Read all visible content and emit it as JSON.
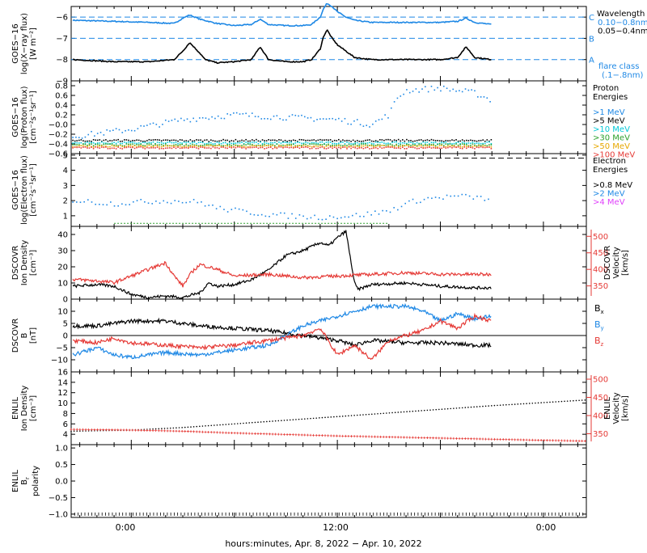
{
  "figure": {
    "xaxis_title": "hours:minutes, Apr.  8, 2022 − Apr. 10, 2022",
    "x_ticks": [
      "0:00",
      "12:00",
      "0:00"
    ],
    "x_tick_hours": [
      0,
      12,
      24
    ],
    "x_range_hours": [
      -3.5,
      26.5
    ]
  },
  "chart_data": [
    {
      "id": "xray",
      "type": "line",
      "ylabel": [
        "GOES−16",
        "log(X−ray flux)",
        "[W m⁻²]"
      ],
      "ylim": [
        -9,
        -5.5
      ],
      "y_ticks": [
        -9,
        -8,
        -7,
        -6
      ],
      "y_tick_labels": [
        "−9",
        "−8",
        "−7",
        "−6"
      ],
      "legend": {
        "title": "Wavelength",
        "entries": [
          {
            "label": "0.10−0.8nm",
            "color": "#1e88e5"
          },
          {
            "label": "0.05−0.4nm",
            "color": "#000000"
          }
        ]
      },
      "flare_levels": [
        {
          "label": "C",
          "value": -6
        },
        {
          "label": "B",
          "value": -7
        },
        {
          "label": "A",
          "value": -8
        }
      ],
      "flare_caption": [
        "flare class",
        "(.1−.8nm)"
      ],
      "series": [
        {
          "name": "0.10−0.8nm",
          "color": "#1e88e5",
          "x": [
            -3.4,
            -1,
            1,
            2.5,
            3.0,
            3.4,
            4,
            5,
            6,
            7,
            7.5,
            8,
            9,
            10,
            10.5,
            11,
            11.2,
            11.4,
            11.7,
            12,
            12.5,
            13,
            14,
            16,
            18,
            19,
            19.5,
            20,
            21
          ],
          "y": [
            -6.15,
            -6.2,
            -6.25,
            -6.3,
            -6.05,
            -5.9,
            -6.1,
            -6.3,
            -6.4,
            -6.35,
            -6.1,
            -6.35,
            -6.4,
            -6.4,
            -6.35,
            -6.0,
            -5.6,
            -5.35,
            -5.5,
            -5.75,
            -6.0,
            -6.15,
            -6.25,
            -6.25,
            -6.25,
            -6.2,
            -6.05,
            -6.25,
            -6.35
          ]
        },
        {
          "name": "0.05−0.4nm",
          "color": "#000000",
          "x": [
            -3.4,
            -1,
            1,
            2.5,
            3.0,
            3.4,
            4,
            4.3,
            5,
            6,
            7,
            7.5,
            8,
            9,
            10,
            10.5,
            11,
            11.2,
            11.4,
            11.7,
            12,
            12.5,
            13,
            14,
            16,
            18,
            19,
            19.5,
            20,
            21
          ],
          "y": [
            -8.0,
            -8.1,
            -8.1,
            -8.0,
            -7.6,
            -7.2,
            -7.7,
            -8.0,
            -8.15,
            -8.1,
            -8.0,
            -7.4,
            -8.0,
            -8.1,
            -8.1,
            -8.0,
            -7.5,
            -6.9,
            -6.6,
            -7.0,
            -7.3,
            -7.6,
            -7.9,
            -8.0,
            -8.0,
            -8.0,
            -7.9,
            -7.4,
            -7.9,
            -8.0
          ]
        }
      ]
    },
    {
      "id": "proton",
      "type": "scatter",
      "ylabel": [
        "GOES−16",
        "log(Proton flux)",
        "[cm⁻²s⁻¹sr⁻¹]"
      ],
      "ylim": [
        -0.6,
        0.9
      ],
      "y_ticks": [
        -0.6,
        -0.4,
        -0.2,
        0,
        0.2,
        0.4,
        0.6,
        0.8
      ],
      "y_tick_labels": [
        "−0.6",
        "−0.4",
        "−0.2",
        "−0.0",
        "0.2",
        "0.4",
        "0.6",
        "0.8"
      ],
      "legend": {
        "title": [
          "Proton",
          "Energies"
        ],
        "entries": [
          {
            "label": ">1 MeV",
            "color": "#1e88e5"
          },
          {
            "label": ">5 MeV",
            "color": "#000000"
          },
          {
            "label": ">10 MeV",
            "color": "#00c8d8"
          },
          {
            "label": ">30 MeV",
            "color": "#2ca02c"
          },
          {
            "label": ">50 MeV",
            "color": "#e6a800"
          },
          {
            "label": ">100 MeV",
            "color": "#e53935"
          }
        ]
      },
      "series": [
        {
          "name": ">1 MeV",
          "color": "#1e88e5",
          "x": [
            -3.4,
            0,
            3,
            6,
            9,
            12,
            14,
            15,
            15.5,
            16,
            18,
            20,
            21
          ],
          "y": [
            -0.25,
            -0.1,
            0.1,
            0.2,
            0.15,
            0.1,
            0.0,
            0.2,
            0.55,
            0.7,
            0.75,
            0.65,
            0.5
          ]
        },
        {
          "name": ">5 MeV",
          "color": "#000000",
          "x": [
            -3.4,
            21
          ],
          "y": [
            -0.33,
            -0.33
          ]
        },
        {
          "name": ">10 MeV",
          "color": "#00c8d8",
          "x": [
            -3.4,
            21
          ],
          "y": [
            -0.38,
            -0.38
          ]
        },
        {
          "name": ">30 MeV",
          "color": "#2ca02c",
          "x": [
            -3.4,
            21
          ],
          "y": [
            -0.42,
            -0.42
          ]
        },
        {
          "name": ">50 MeV",
          "color": "#e6a800",
          "x": [
            -3.4,
            21
          ],
          "y": [
            -0.45,
            -0.45
          ]
        },
        {
          "name": ">100 MeV",
          "color": "#e53935",
          "x": [
            -3.4,
            21
          ],
          "y": [
            -0.48,
            -0.48
          ]
        }
      ]
    },
    {
      "id": "electron",
      "type": "scatter",
      "ylabel": [
        "GOES−16",
        "log(Electron flux)",
        "[cm⁻²s⁻¹sr⁻¹]"
      ],
      "ylim": [
        0.3,
        5.1
      ],
      "y_ticks": [
        1,
        2,
        3,
        4,
        5
      ],
      "y_tick_labels": [
        "1",
        "2",
        "3",
        "4",
        "5"
      ],
      "reference_value": 4.8,
      "legend": {
        "title": [
          "Electron",
          "Energies"
        ],
        "entries": [
          {
            "label": ">0.8 MeV",
            "color": "#000000"
          },
          {
            "label": ">2 MeV",
            "color": "#1e88e5"
          },
          {
            "label": ">4 MeV",
            "color": "#e040fb"
          }
        ]
      },
      "series": [
        {
          "name": ">0.8 MeV",
          "color": "#000000",
          "x": [],
          "y": []
        },
        {
          "name": ">2 MeV",
          "color": "#1e88e5",
          "x": [
            -3.4,
            -1,
            2,
            4,
            5,
            7,
            9,
            11,
            13,
            15,
            16,
            17,
            19,
            21
          ],
          "y": [
            2.0,
            1.8,
            2.0,
            1.9,
            1.5,
            1.2,
            1.0,
            0.9,
            1.0,
            1.3,
            1.8,
            2.1,
            2.3,
            2.1
          ]
        },
        {
          "name": ">4 MeV",
          "color": "#e040fb",
          "x": [],
          "y": []
        }
      ]
    },
    {
      "id": "dscovr-plasma",
      "type": "line",
      "ylabel": [
        "DSCOVR",
        "Ion Density",
        "[cm⁻³]"
      ],
      "ylim": [
        0,
        45
      ],
      "y_ticks": [
        0,
        10,
        20,
        30,
        40
      ],
      "y_tick_labels": [
        "0",
        "10",
        "20",
        "30",
        "40"
      ],
      "y2label": [
        "DSCOVR",
        "Velocity",
        "[km/s]"
      ],
      "y2lim": [
        310,
        530
      ],
      "y2_ticks": [
        350,
        400,
        450,
        500
      ],
      "y2_tick_labels": [
        "350",
        "400",
        "450",
        "500"
      ],
      "series": [
        {
          "name": "Ion Density",
          "color": "#000000",
          "axis": "left",
          "x": [
            -3.4,
            -2,
            -1,
            0,
            1,
            2,
            3,
            4,
            4.5,
            5,
            6,
            7,
            8,
            9,
            10,
            11,
            11.5,
            12,
            12.5,
            13,
            13.2,
            14,
            16,
            18,
            20,
            21
          ],
          "y": [
            8,
            9,
            8,
            3,
            1,
            2,
            1,
            4,
            10,
            8,
            9,
            12,
            18,
            27,
            30,
            35,
            33,
            38,
            42,
            10,
            6,
            9,
            10,
            8,
            7,
            7
          ]
        },
        {
          "name": "Velocity",
          "color": "#e53935",
          "axis": "right",
          "x": [
            -3.4,
            -2,
            -1,
            0,
            1,
            2,
            2.5,
            3,
            3.5,
            4,
            5,
            6,
            8,
            10,
            12,
            14,
            16,
            18,
            20,
            21
          ],
          "y": [
            370,
            365,
            360,
            380,
            400,
            420,
            380,
            350,
            390,
            415,
            400,
            380,
            385,
            375,
            380,
            385,
            390,
            385,
            385,
            385
          ]
        }
      ]
    },
    {
      "id": "dscovr-field",
      "type": "line",
      "ylabel": [
        "DSCOVR",
        "B",
        "[nT]"
      ],
      "ylim": [
        -15,
        15
      ],
      "y_ticks": [
        -10,
        -5,
        0,
        5,
        10
      ],
      "y_tick_labels": [
        "−10",
        "−5",
        "0",
        "5",
        "10"
      ],
      "zero_line": true,
      "legend": {
        "entries": [
          {
            "label": "B",
            "sub": "x",
            "color": "#000000"
          },
          {
            "label": "B",
            "sub": "y",
            "color": "#1e88e5"
          },
          {
            "label": "B",
            "sub": "z",
            "color": "#e53935"
          }
        ]
      },
      "series": [
        {
          "name": "Bx",
          "color": "#000000",
          "x": [
            -3.4,
            -2,
            -1,
            0,
            2,
            4,
            6,
            8,
            9,
            10,
            11,
            12,
            13,
            14,
            16,
            18,
            20,
            21
          ],
          "y": [
            4,
            4,
            5,
            6,
            6,
            4,
            3,
            2,
            1,
            0,
            -1,
            -2,
            -4,
            -2,
            -3,
            -3,
            -4,
            -4
          ]
        },
        {
          "name": "By",
          "color": "#1e88e5",
          "x": [
            -3.4,
            -2,
            -1,
            0,
            2,
            4,
            6,
            8,
            9,
            10,
            11,
            12,
            13,
            14,
            16,
            17,
            18,
            19,
            20,
            21
          ],
          "y": [
            -8,
            -5,
            -8,
            -9,
            -7,
            -8,
            -6,
            -4,
            0,
            4,
            6,
            8,
            10,
            12,
            12,
            10,
            6,
            9,
            7,
            8
          ]
        },
        {
          "name": "Bz",
          "color": "#e53935",
          "x": [
            -3.4,
            -2,
            -1,
            0,
            2,
            4,
            6,
            8,
            9,
            10,
            11,
            12,
            13,
            14,
            15,
            16,
            17,
            18,
            19,
            20,
            21
          ],
          "y": [
            -2,
            -3,
            -1,
            -3,
            -4,
            -5,
            -4,
            -2,
            -1,
            0,
            3,
            -8,
            -4,
            -10,
            -2,
            0,
            2,
            6,
            3,
            8,
            6
          ]
        }
      ]
    },
    {
      "id": "enlil-plasma",
      "type": "line",
      "ylabel": [
        "ENLIL",
        "Ion Density",
        "[cm⁻³]"
      ],
      "ylim": [
        2,
        16
      ],
      "y_ticks": [
        4,
        6,
        8,
        10,
        12,
        14,
        16
      ],
      "y_tick_labels": [
        "4",
        "6",
        "8",
        "10",
        "12",
        "14",
        "16"
      ],
      "y2label": [
        "ENLIL",
        "Velocity",
        "[km/s]"
      ],
      "y2lim": [
        320,
        520
      ],
      "y2_ticks": [
        350,
        400,
        450,
        500
      ],
      "y2_tick_labels": [
        "350",
        "400",
        "450",
        "500"
      ],
      "series": [
        {
          "name": "Ion Density",
          "color": "#000000",
          "axis": "left",
          "x": [
            -3.5,
            0,
            3,
            6,
            9,
            12,
            15,
            18,
            21,
            24,
            26.5
          ],
          "y": [
            4.6,
            4.8,
            5.3,
            6.0,
            6.7,
            7.4,
            8.1,
            8.8,
            9.5,
            10.1,
            10.6
          ]
        },
        {
          "name": "Velocity",
          "color": "#e53935",
          "axis": "right",
          "x": [
            -3.5,
            0,
            3,
            6,
            9,
            12,
            15,
            18,
            21,
            24,
            26.5
          ],
          "y": [
            362,
            360,
            357,
            352,
            348,
            344,
            341,
            338,
            335,
            332,
            330
          ]
        }
      ]
    },
    {
      "id": "enlil-polarity",
      "type": "line",
      "ylabel": [
        "ENLIL",
        "B",
        "polarity"
      ],
      "ylabel_sub": "r",
      "ylim": [
        -1.1,
        1.1
      ],
      "y_ticks": [
        -1,
        -0.5,
        0,
        0.5,
        1
      ],
      "y_tick_labels": [
        "−1.0",
        "−0.5",
        "0.0",
        "0.5",
        "1.0"
      ],
      "series": [
        {
          "name": "Br polarity",
          "color": "#000000",
          "x": [
            -3.5,
            26.5
          ],
          "y": [
            -1.0,
            -1.0
          ]
        }
      ]
    }
  ]
}
